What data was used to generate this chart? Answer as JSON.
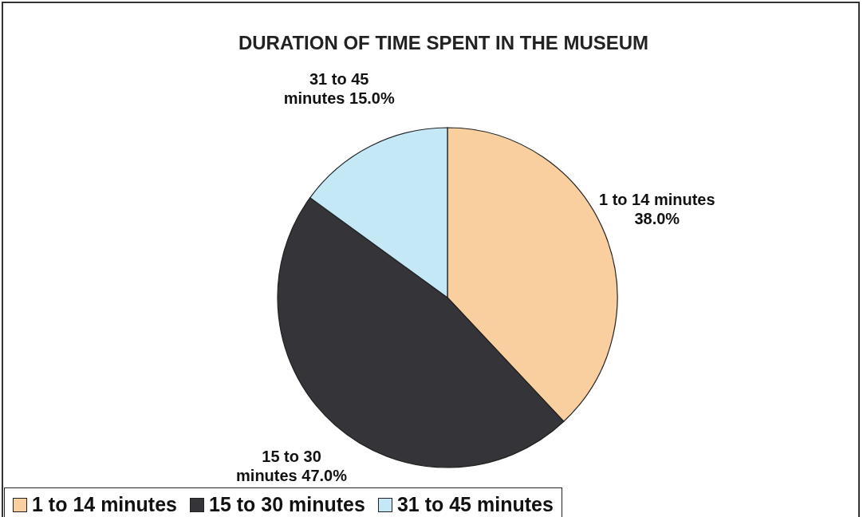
{
  "chart_data": {
    "type": "pie",
    "title": "DURATION OF TIME SPENT IN THE MUSEUM",
    "categories": [
      "1 to 14 minutes",
      "15 to 30 minutes",
      "31 to 45 minutes"
    ],
    "values": [
      38,
      47,
      15
    ],
    "value_labels": [
      "38.0%",
      "47.0%",
      "15.0%"
    ],
    "colors": [
      "#f9cf9f",
      "#353438",
      "#c5e8f7"
    ],
    "legend": "bottom"
  }
}
